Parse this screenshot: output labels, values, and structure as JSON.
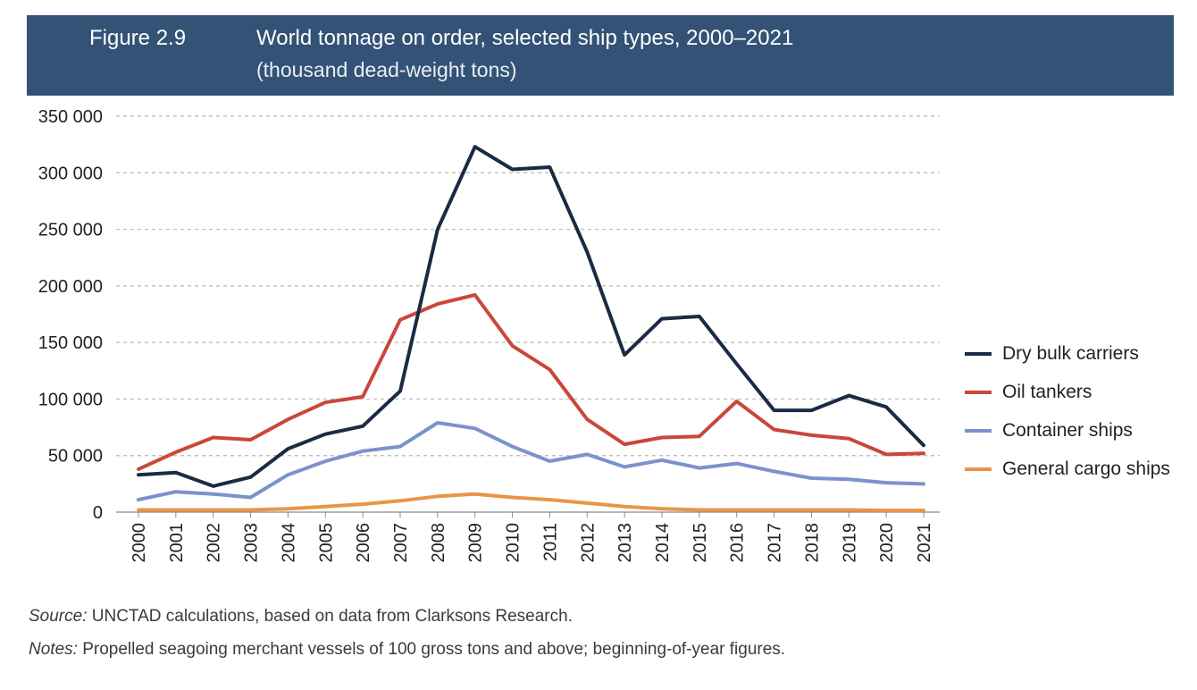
{
  "header": {
    "figure_number": "Figure 2.9",
    "title": "World tonnage on order, selected ship types, 2000–2021",
    "subtitle": "(thousand dead-weight tons)"
  },
  "chart_data": {
    "type": "line",
    "title": "World tonnage on order, selected ship types, 2000–2021",
    "subtitle": "(thousand dead-weight tons)",
    "x": [
      "2000",
      "2001",
      "2002",
      "2003",
      "2004",
      "2005",
      "2006",
      "2007",
      "2008",
      "2009",
      "2010",
      "2011",
      "2012",
      "2013",
      "2014",
      "2015",
      "2016",
      "2017",
      "2018",
      "2019",
      "2020",
      "2021"
    ],
    "ylim": [
      0,
      350000
    ],
    "yticks": [
      0,
      50000,
      100000,
      150000,
      200000,
      250000,
      300000,
      350000
    ],
    "ytick_labels": [
      "0",
      "50 000",
      "100 000",
      "150 000",
      "200 000",
      "250 000",
      "300 000",
      "350 000"
    ],
    "grid": true,
    "legend_position": "right",
    "series": [
      {
        "name": "Dry bulk carriers",
        "color": "#1a2b44",
        "values": [
          33000,
          35000,
          23000,
          31000,
          56000,
          69000,
          76000,
          107000,
          250000,
          323000,
          303000,
          305000,
          230000,
          139000,
          171000,
          173000,
          131000,
          90000,
          90000,
          103000,
          93000,
          59000
        ]
      },
      {
        "name": "Oil tankers",
        "color": "#c9473b",
        "values": [
          38000,
          53000,
          66000,
          64000,
          82000,
          97000,
          102000,
          170000,
          184000,
          192000,
          147000,
          126000,
          82000,
          60000,
          66000,
          67000,
          98000,
          73000,
          68000,
          65000,
          51000,
          52000
        ]
      },
      {
        "name": "Container ships",
        "color": "#7b92cc",
        "values": [
          11000,
          18000,
          16000,
          13000,
          33000,
          45000,
          54000,
          58000,
          79000,
          74000,
          58000,
          45000,
          51000,
          40000,
          46000,
          39000,
          43000,
          36000,
          30000,
          29000,
          26000,
          25000
        ]
      },
      {
        "name": "General cargo ships",
        "color": "#e99548",
        "values": [
          2000,
          2000,
          2000,
          2000,
          3000,
          5000,
          7000,
          10000,
          14000,
          16000,
          13000,
          11000,
          8000,
          5000,
          3000,
          2000,
          2000,
          2000,
          2000,
          2000,
          1500,
          1500
        ]
      }
    ]
  },
  "footer": {
    "source_label": "Source:",
    "source_text": " UNCTAD calculations, based on data from Clarksons Research.",
    "notes_label": "Notes:",
    "notes_text": " Propelled seagoing merchant vessels of 100 gross tons and above; beginning-of-year figures."
  }
}
